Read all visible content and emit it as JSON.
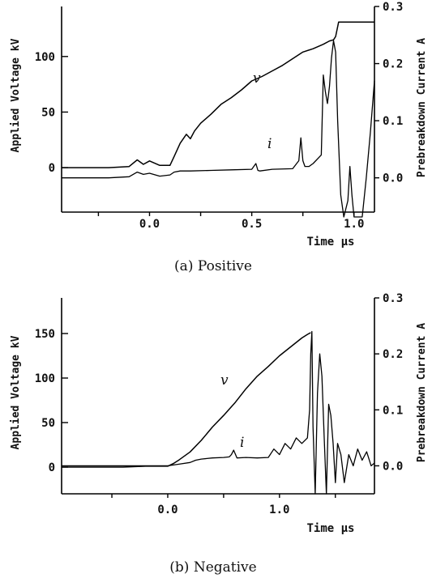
{
  "chart_data": [
    {
      "type": "line",
      "caption": "(a) Positive",
      "xlabel": "Time μs",
      "ylabel": "Applied Voltage kV",
      "y2label": "Prebreakdown Current A",
      "xlim": [
        -0.43,
        1.1
      ],
      "ylim": [
        -40,
        145
      ],
      "y2lim": [
        -0.06,
        0.3
      ],
      "xticks": [
        -0.25,
        0.0,
        0.25,
        0.5,
        0.75,
        1.0
      ],
      "xticklabels": [
        "0.0",
        "0.5",
        "1.0"
      ],
      "xticklabel_values": [
        0.0,
        0.5,
        1.0
      ],
      "yticks": [
        0,
        50,
        100
      ],
      "y2ticks": [
        0.0,
        0.1,
        0.2,
        0.3
      ],
      "series": [
        {
          "name": "v",
          "x": [
            -0.43,
            -0.3,
            -0.2,
            -0.1,
            -0.06,
            -0.03,
            0.0,
            0.05,
            0.1,
            0.12,
            0.15,
            0.18,
            0.2,
            0.22,
            0.25,
            0.3,
            0.35,
            0.4,
            0.45,
            0.5,
            0.55,
            0.6,
            0.65,
            0.7,
            0.75,
            0.8,
            0.85,
            0.88,
            0.9,
            0.91,
            0.925,
            1.1
          ],
          "y": [
            0,
            0,
            0,
            1,
            7,
            3,
            6,
            2,
            2,
            10,
            22,
            30,
            26,
            33,
            40,
            48,
            57,
            63,
            70,
            78,
            82,
            87,
            92,
            98,
            104,
            107,
            111,
            114,
            115,
            118,
            131,
            131
          ]
        },
        {
          "name": "i",
          "x": [
            -0.43,
            -0.2,
            -0.1,
            -0.06,
            -0.03,
            0.0,
            0.05,
            0.1,
            0.12,
            0.15,
            0.2,
            0.3,
            0.4,
            0.5,
            0.52,
            0.53,
            0.54,
            0.6,
            0.7,
            0.73,
            0.74,
            0.75,
            0.76,
            0.78,
            0.8,
            0.84,
            0.85,
            0.86,
            0.87,
            0.88,
            0.89,
            0.9,
            0.91,
            0.92,
            0.935,
            0.95,
            0.97,
            0.98,
            0.99,
            1.0,
            1.02,
            1.04,
            1.06,
            1.08,
            1.1
          ],
          "y": [
            0.0,
            0.0,
            0.002,
            0.01,
            0.006,
            0.008,
            0.003,
            0.005,
            0.01,
            0.012,
            0.012,
            0.013,
            0.014,
            0.015,
            0.025,
            0.013,
            0.012,
            0.015,
            0.016,
            0.03,
            0.07,
            0.03,
            0.02,
            0.02,
            0.025,
            0.04,
            0.18,
            0.15,
            0.13,
            0.16,
            0.21,
            0.24,
            0.22,
            0.1,
            -0.03,
            -0.07,
            -0.04,
            0.02,
            -0.03,
            -0.07,
            -0.07,
            -0.07,
            0.0,
            0.08,
            0.17
          ]
        }
      ]
    },
    {
      "type": "line",
      "caption": "(b) Negative",
      "xlabel": "Time μs",
      "ylabel": "Applied Voltage kV",
      "y2label": "Prebreakdown Current A",
      "xlim": [
        -0.95,
        1.85
      ],
      "ylim": [
        -30,
        190
      ],
      "y2lim": [
        -0.05,
        0.3
      ],
      "xticks": [
        -0.5,
        0.0,
        0.5,
        1.0,
        1.5
      ],
      "xticklabels": [
        "0.0",
        "1.0"
      ],
      "xticklabel_values": [
        0.0,
        1.0
      ],
      "yticks": [
        0,
        50,
        100,
        150
      ],
      "y2ticks": [
        0.0,
        0.1,
        0.2,
        0.3
      ],
      "series": [
        {
          "name": "v",
          "x": [
            -0.95,
            -0.6,
            -0.4,
            -0.2,
            -0.05,
            0.0,
            0.05,
            0.1,
            0.2,
            0.3,
            0.4,
            0.5,
            0.6,
            0.7,
            0.8,
            0.9,
            1.0,
            1.1,
            1.2,
            1.25,
            1.28
          ],
          "y": [
            0,
            0,
            0,
            1,
            1,
            1,
            4,
            8,
            17,
            30,
            45,
            58,
            72,
            88,
            102,
            113,
            125,
            135,
            145,
            149,
            151
          ]
        },
        {
          "name": "i",
          "x": [
            -0.95,
            -0.5,
            0.0,
            0.1,
            0.2,
            0.25,
            0.3,
            0.4,
            0.5,
            0.55,
            0.57,
            0.59,
            0.62,
            0.7,
            0.8,
            0.9,
            0.95,
            1.0,
            1.05,
            1.1,
            1.15,
            1.2,
            1.25,
            1.27,
            1.28,
            1.29,
            1.3,
            1.32,
            1.34,
            1.36,
            1.38,
            1.4,
            1.42,
            1.44,
            1.46,
            1.48,
            1.5,
            1.52,
            1.55,
            1.58,
            1.62,
            1.66,
            1.7,
            1.74,
            1.78,
            1.82,
            1.85
          ],
          "y": [
            0.0,
            0.0,
            0.0,
            0.003,
            0.006,
            0.01,
            0.012,
            0.014,
            0.015,
            0.016,
            0.02,
            0.028,
            0.014,
            0.015,
            0.014,
            0.015,
            0.03,
            0.02,
            0.04,
            0.03,
            0.05,
            0.04,
            0.05,
            0.1,
            0.2,
            0.24,
            0.07,
            -0.05,
            0.13,
            0.2,
            0.16,
            0.05,
            -0.05,
            0.11,
            0.09,
            0.04,
            -0.03,
            0.04,
            0.02,
            -0.03,
            0.02,
            0.0,
            0.03,
            0.01,
            0.025,
            0.0,
            0.005
          ]
        }
      ]
    }
  ]
}
